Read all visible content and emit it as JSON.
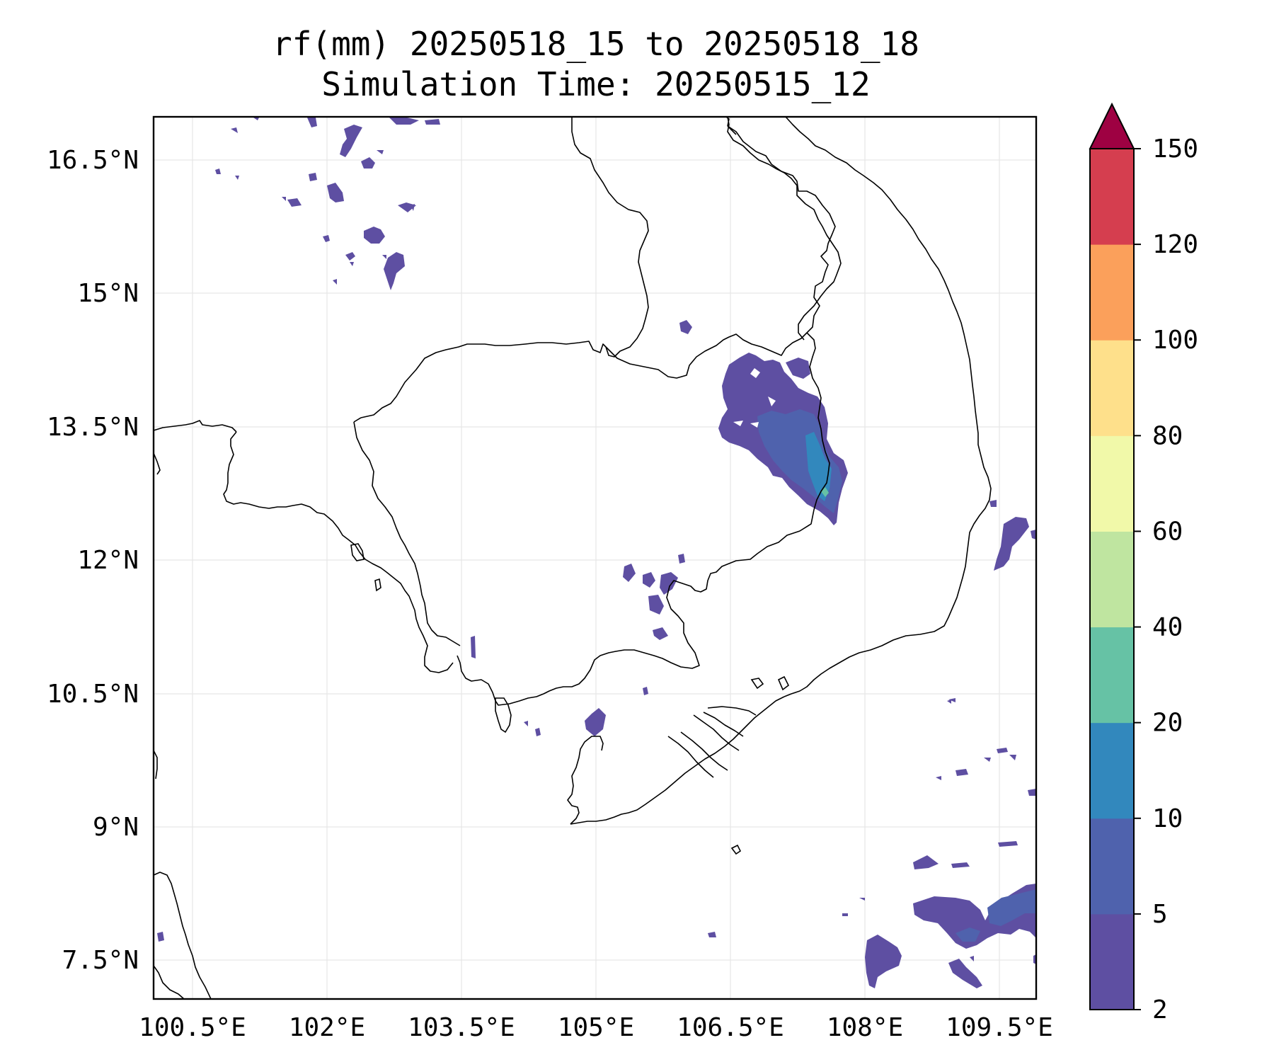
{
  "title": {
    "line1": "rf(mm) 20250518_15 to 20250518_18",
    "line2": "Simulation Time: 20250515_12"
  },
  "map": {
    "lon_ticks": [
      "100.5°E",
      "102°E",
      "103.5°E",
      "105°E",
      "106.5°E",
      "108°E",
      "109.5°E"
    ],
    "lat_ticks": [
      "16.5°N",
      "15°N",
      "13.5°N",
      "12°N",
      "10.5°N",
      "9°N",
      "7.5°N"
    ],
    "extent": {
      "lon_min": 100.5,
      "lon_max": 109.8,
      "lat_min": 7.0,
      "lat_max": 17.0
    },
    "gridlines": true,
    "feature_color": "#000000"
  },
  "colorbar": {
    "levels": [
      "2",
      "5",
      "10",
      "20",
      "40",
      "60",
      "80",
      "100",
      "120",
      "150"
    ],
    "colors": [
      "#5e4fa2",
      "#4f62ad",
      "#3288bd",
      "#66c2a5",
      "#bfe5a0",
      "#f1f9a9",
      "#fee08b",
      "#fba05b",
      "#d53e4f",
      "#9e0142"
    ],
    "extend": "max",
    "placement": "right"
  }
}
